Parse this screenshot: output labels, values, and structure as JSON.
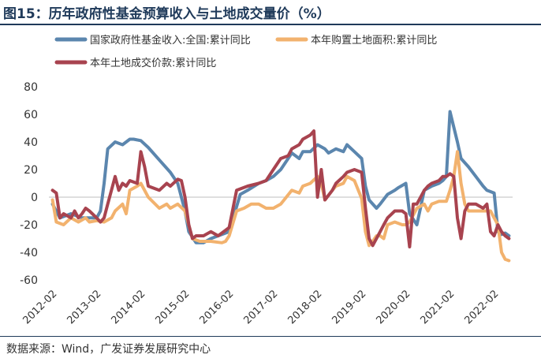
{
  "header": {
    "title": "图15：历年政府性基金预算收入与土地成交量价（%）"
  },
  "footer": {
    "source": "数据来源：Wind，广发证券发展研究中心"
  },
  "colors": {
    "series1": "#5b86ae",
    "series2": "#f2b26e",
    "series3": "#a8434f",
    "zero_line": "#bfbfbf",
    "axis_text": "#333333"
  },
  "chart_data": {
    "type": "line",
    "title": "图15：历年政府性基金预算收入与土地成交量价（%）",
    "xlabel": "",
    "ylabel": "",
    "ylim": [
      -60,
      80
    ],
    "yticks": [
      80,
      60,
      40,
      20,
      0,
      -20,
      -40,
      -60
    ],
    "ytick_labels": [
      "80",
      "60",
      "40",
      "20",
      "0",
      "-20",
      "-40",
      "-60"
    ],
    "x_range": [
      2012.0,
      2022.5
    ],
    "xticks": [
      2012.083,
      2013.083,
      2014.083,
      2015.083,
      2016.083,
      2017.083,
      2018.083,
      2019.083,
      2020.083,
      2021.083,
      2022.083
    ],
    "xtick_labels": [
      "2012-02",
      "2013-02",
      "2014-02",
      "2015-02",
      "2016-02",
      "2017-02",
      "2018-02",
      "2019-02",
      "2020-02",
      "2021-02",
      "2022-02"
    ],
    "grid": false,
    "legend": [
      "国家政府性基金收入:全国:累计同比",
      "本年购置土地面积:累计同比",
      "本年土地成交价款:累计同比"
    ],
    "series": [
      {
        "name": "国家政府性基金收入:全国:累计同比",
        "color": "#5b86ae",
        "x": [
          2012.083,
          2012.25,
          2012.5,
          2012.75,
          2012.917,
          2013.083,
          2013.167,
          2013.25,
          2013.333,
          2013.5,
          2013.667,
          2013.833,
          2013.917,
          2014.083,
          2014.25,
          2014.5,
          2014.75,
          2014.917,
          2015.083,
          2015.167,
          2015.333,
          2015.5,
          2015.667,
          2015.833,
          2015.917,
          2016.083,
          2016.333,
          2016.5,
          2016.75,
          2016.917,
          2017.083,
          2017.25,
          2017.417,
          2017.5,
          2017.667,
          2017.75,
          2017.917,
          2018.083,
          2018.25,
          2018.333,
          2018.5,
          2018.667,
          2018.75,
          2018.917,
          2019.083,
          2019.167,
          2019.25,
          2019.417,
          2019.5,
          2019.667,
          2019.833,
          2019.917,
          2020.083,
          2020.167,
          2020.333,
          2020.5,
          2020.667,
          2020.833,
          2020.917,
          2021.0,
          2021.083,
          2021.25,
          2021.333,
          2021.5,
          2021.667,
          2021.833,
          2021.917,
          2022.083,
          2022.167,
          2022.25,
          2022.333,
          2022.417
        ],
        "values": [
          -5,
          -15,
          -12,
          -15,
          -15,
          -15,
          -10,
          10,
          35,
          40,
          38,
          42,
          42,
          41,
          36,
          27,
          18,
          10,
          -10,
          -25,
          -33,
          -33,
          -30,
          -28,
          -27,
          -25,
          2,
          5,
          10,
          12,
          15,
          20,
          28,
          32,
          28,
          33,
          33,
          38,
          35,
          32,
          35,
          33,
          38,
          33,
          28,
          8,
          -2,
          -8,
          -5,
          2,
          5,
          7,
          10,
          -12,
          -20,
          5,
          8,
          10,
          12,
          15,
          62,
          40,
          28,
          22,
          15,
          8,
          5,
          3,
          -25,
          -27,
          -26,
          -28
        ]
      },
      {
        "name": "本年购置土地面积:累计同比",
        "color": "#f2b26e",
        "x": [
          2012.083,
          2012.167,
          2012.333,
          2012.5,
          2012.667,
          2012.833,
          2012.917,
          2013.083,
          2013.25,
          2013.417,
          2013.5,
          2013.667,
          2013.75,
          2013.833,
          2014.0,
          2014.083,
          2014.25,
          2014.5,
          2014.667,
          2014.75,
          2014.917,
          2015.083,
          2015.25,
          2015.417,
          2015.667,
          2015.917,
          2016.0,
          2016.083,
          2016.25,
          2016.417,
          2016.583,
          2016.75,
          2016.917,
          2017.083,
          2017.25,
          2017.5,
          2017.667,
          2017.75,
          2017.917,
          2018.083,
          2018.167,
          2018.25,
          2018.417,
          2018.5,
          2018.667,
          2018.75,
          2018.917,
          2019.083,
          2019.167,
          2019.25,
          2019.333,
          2019.417,
          2019.5,
          2019.583,
          2019.667,
          2019.833,
          2020.0,
          2020.083,
          2020.167,
          2020.333,
          2020.5,
          2020.583,
          2020.667,
          2020.833,
          2021.0,
          2021.083,
          2021.167,
          2021.25,
          2021.333,
          2021.417,
          2021.5,
          2021.667,
          2021.833,
          2022.0,
          2022.083,
          2022.167,
          2022.25,
          2022.333,
          2022.417
        ],
        "values": [
          -2,
          -18,
          -20,
          -15,
          -18,
          -15,
          -18,
          -17,
          -18,
          -15,
          -10,
          -5,
          -12,
          5,
          8,
          10,
          0,
          -8,
          -5,
          -8,
          -5,
          -10,
          -30,
          -32,
          -32,
          -33,
          -32,
          -28,
          -10,
          -8,
          -5,
          -5,
          -8,
          -8,
          -5,
          5,
          3,
          8,
          10,
          15,
          10,
          -2,
          5,
          8,
          10,
          15,
          12,
          -1,
          -25,
          -35,
          -32,
          -28,
          -28,
          -30,
          -20,
          -18,
          -20,
          -20,
          -18,
          -8,
          -5,
          -10,
          -5,
          -3,
          -3,
          5,
          15,
          33,
          10,
          -5,
          -10,
          -10,
          -10,
          -10,
          -15,
          -20,
          -40,
          -45,
          -46
        ]
      },
      {
        "name": "本年土地成交价款:累计同比",
        "color": "#a8434f",
        "x": [
          2012.083,
          2012.167,
          2012.25,
          2012.333,
          2012.5,
          2012.583,
          2012.667,
          2012.75,
          2012.833,
          2012.917,
          2013.083,
          2013.167,
          2013.25,
          2013.333,
          2013.5,
          2013.583,
          2013.667,
          2013.75,
          2013.833,
          2014.0,
          2014.083,
          2014.167,
          2014.25,
          2014.5,
          2014.667,
          2014.75,
          2014.917,
          2015.0,
          2015.083,
          2015.167,
          2015.25,
          2015.333,
          2015.5,
          2015.667,
          2015.833,
          2016.0,
          2016.083,
          2016.25,
          2016.5,
          2016.75,
          2016.917,
          2017.083,
          2017.25,
          2017.417,
          2017.5,
          2017.667,
          2017.75,
          2017.917,
          2018.0,
          2018.083,
          2018.167,
          2018.25,
          2018.417,
          2018.5,
          2018.667,
          2018.75,
          2018.917,
          2019.083,
          2019.167,
          2019.25,
          2019.333,
          2019.5,
          2019.583,
          2019.667,
          2019.833,
          2020.0,
          2020.083,
          2020.167,
          2020.25,
          2020.333,
          2020.5,
          2020.583,
          2020.667,
          2020.833,
          2020.917,
          2021.0,
          2021.083,
          2021.167,
          2021.25,
          2021.333,
          2021.417,
          2021.5,
          2021.667,
          2021.833,
          2021.917,
          2022.0,
          2022.083,
          2022.167,
          2022.25,
          2022.333,
          2022.417
        ],
        "values": [
          5,
          3,
          -15,
          -12,
          -15,
          -10,
          -15,
          -12,
          -8,
          -10,
          -15,
          -18,
          -15,
          -5,
          15,
          5,
          10,
          8,
          12,
          10,
          33,
          22,
          8,
          5,
          10,
          8,
          13,
          12,
          0,
          -20,
          -30,
          -28,
          -28,
          -25,
          -28,
          -24,
          -22,
          5,
          8,
          10,
          12,
          20,
          28,
          30,
          35,
          38,
          42,
          45,
          48,
          0,
          20,
          -2,
          5,
          10,
          15,
          18,
          20,
          18,
          -8,
          -30,
          -35,
          -25,
          -20,
          -15,
          -10,
          -10,
          -12,
          -36,
          -5,
          -5,
          5,
          8,
          10,
          12,
          15,
          15,
          17,
          15,
          -15,
          -30,
          -10,
          -5,
          -5,
          -8,
          -5,
          -25,
          -28,
          -20,
          -25,
          -28,
          -30
        ]
      }
    ]
  }
}
